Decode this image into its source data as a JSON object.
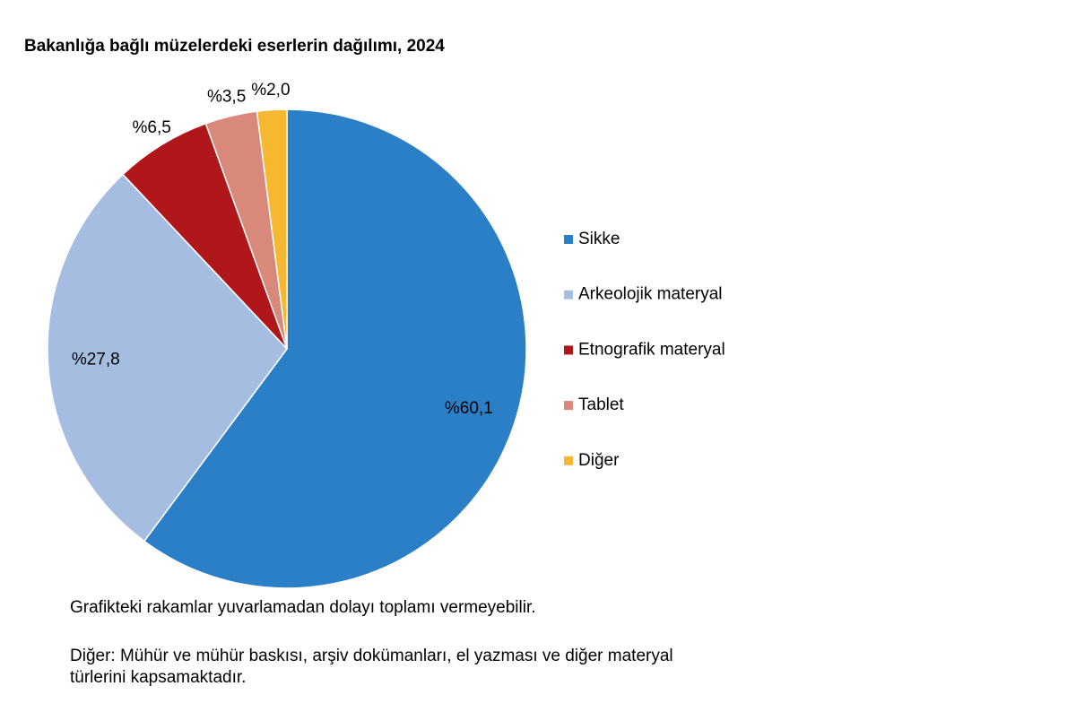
{
  "chart_data": {
    "type": "pie",
    "title": "Bakanlığa bağlı müzelerdeki eserlerin dağılımı, 2024",
    "categories": [
      "Sikke",
      "Arkeolojik materyal",
      "Etnografik materyal",
      "Tablet",
      "Diğer"
    ],
    "values": [
      60.1,
      27.8,
      6.5,
      3.5,
      2.0
    ],
    "value_labels": [
      "%60,1",
      "%27,8",
      "%6,5",
      "%3,5",
      "%2,0"
    ],
    "colors": [
      "#2a7fc6",
      "#a4bde0",
      "#b0171b",
      "#d8897a",
      "#f5b830"
    ],
    "legend": "right",
    "notes": [
      "Grafikteki rakamlar yuvarlamadan dolayı toplamı vermeyebilir.",
      "Diğer: Mühür ve mühür baskısı, arşiv dokümanları, el yazması ve diğer materyal türlerini kapsamaktadır."
    ]
  }
}
